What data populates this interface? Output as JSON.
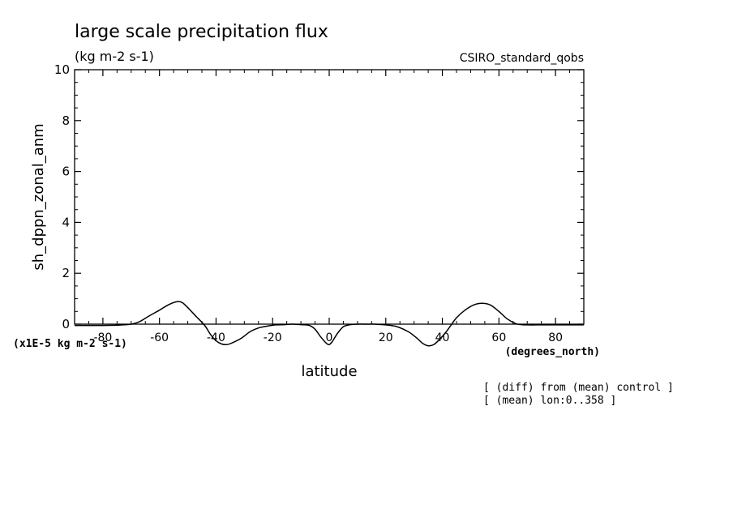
{
  "chart_data": {
    "type": "line",
    "title": "large scale precipitation flux",
    "units": "(kg m-2 s-1)",
    "model_label": "CSIRO_standard_qobs",
    "ylabel": "sh_dppn_zonal_anm",
    "xlabel": "latitude",
    "x_units": "(degrees_north)",
    "y_scale_note": "(x1E-5 kg m-2 s-1)",
    "notes": [
      "[ (diff) from (mean) control ]",
      "[ (mean) lon:0..358 ]"
    ],
    "xlim": [
      -90,
      90
    ],
    "ylim": [
      0,
      10
    ],
    "x_ticks": [
      -80,
      -60,
      -40,
      -20,
      0,
      20,
      40,
      60,
      80
    ],
    "x_tick_labels": [
      "-80",
      "-60",
      "-40",
      "-20",
      "0",
      "20",
      "40",
      "60",
      "80"
    ],
    "y_ticks": [
      0,
      2,
      4,
      6,
      8,
      10
    ],
    "y_tick_labels": [
      "0",
      "2",
      "4",
      "6",
      "8",
      "10"
    ],
    "grid": false,
    "series": [
      {
        "x": [
          -90,
          -85,
          -80,
          -75,
          -70,
          -67,
          -64,
          -60,
          -57,
          -54,
          -52,
          -50,
          -47,
          -44,
          -42,
          -40,
          -38,
          -36,
          -34,
          -31,
          -28,
          -25,
          -22,
          -19,
          -16,
          -13,
          -10,
          -7,
          -5,
          -3,
          -1,
          0,
          1,
          3,
          5,
          7,
          10,
          13,
          16,
          20,
          24,
          28,
          31,
          33,
          35,
          37,
          39,
          41,
          43,
          45,
          48,
          51,
          54,
          57,
          60,
          63,
          66,
          68,
          70,
          75,
          80,
          85,
          90
        ],
        "y": [
          -0.05,
          -0.05,
          -0.05,
          -0.04,
          0.0,
          0.1,
          0.3,
          0.55,
          0.75,
          0.88,
          0.85,
          0.65,
          0.3,
          -0.05,
          -0.4,
          -0.65,
          -0.78,
          -0.8,
          -0.72,
          -0.55,
          -0.3,
          -0.15,
          -0.08,
          -0.03,
          -0.02,
          0.0,
          -0.02,
          -0.05,
          -0.2,
          -0.5,
          -0.75,
          -0.8,
          -0.7,
          -0.35,
          -0.1,
          -0.03,
          0.0,
          0.0,
          0.0,
          -0.03,
          -0.1,
          -0.3,
          -0.55,
          -0.75,
          -0.85,
          -0.8,
          -0.6,
          -0.35,
          -0.05,
          0.25,
          0.55,
          0.75,
          0.82,
          0.75,
          0.5,
          0.2,
          0.02,
          -0.02,
          -0.03,
          -0.03,
          -0.03,
          -0.03,
          -0.03
        ]
      }
    ]
  }
}
